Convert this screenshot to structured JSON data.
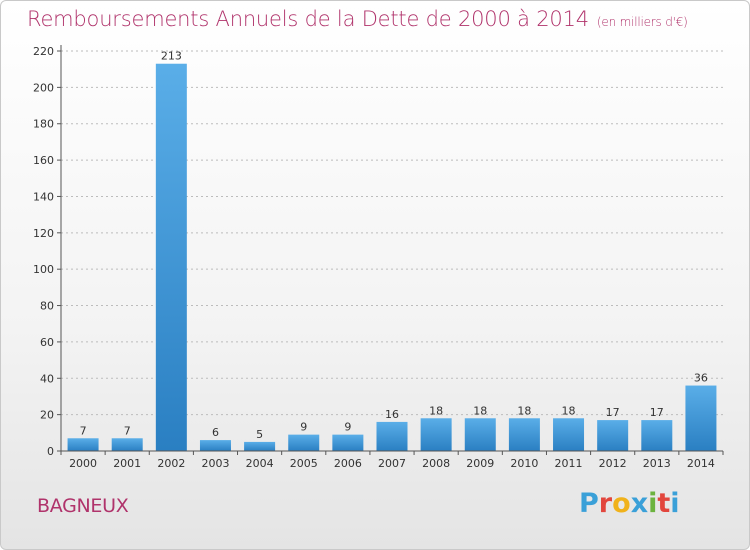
{
  "title": "Remboursements Annuels de la Dette de 2000 à 2014",
  "subtitle": "(en milliers d'€)",
  "city": "BAGNEUX",
  "logo": {
    "letters": [
      "P",
      "r",
      "o",
      "x",
      "i",
      "t",
      "i"
    ],
    "colors": [
      "#3aa0d8",
      "#e2463d",
      "#f0b21b",
      "#3aa0d8",
      "#6cb33f",
      "#e2463d",
      "#3aa0d8"
    ]
  },
  "colors": {
    "title": "#b0336b",
    "bar_light": "#5aaee8",
    "bar_dark": "#2a7fc2",
    "grid": "#bcbcbc"
  },
  "chart_data": {
    "type": "bar",
    "title": "Remboursements Annuels de la Dette de 2000 à 2014",
    "subtitle": "(en milliers d'€)",
    "xlabel": "",
    "ylabel": "",
    "categories": [
      "2000",
      "2001",
      "2002",
      "2003",
      "2004",
      "2005",
      "2006",
      "2007",
      "2008",
      "2009",
      "2010",
      "2011",
      "2012",
      "2013",
      "2014"
    ],
    "values": [
      7,
      7,
      213,
      6,
      5,
      9,
      9,
      16,
      18,
      18,
      18,
      18,
      17,
      17,
      36
    ],
    "ylim": [
      0,
      220
    ],
    "yticks": [
      0,
      20,
      40,
      60,
      80,
      100,
      120,
      140,
      160,
      180,
      200,
      220
    ],
    "grid": true,
    "data_labels": true
  }
}
